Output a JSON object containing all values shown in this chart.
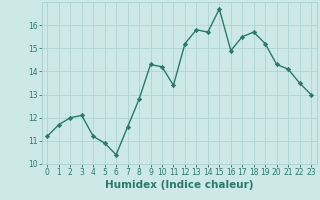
{
  "title": "",
  "xlabel": "Humidex (Indice chaleur)",
  "ylabel": "",
  "x_values": [
    0,
    1,
    2,
    3,
    4,
    5,
    6,
    7,
    8,
    9,
    10,
    11,
    12,
    13,
    14,
    15,
    16,
    17,
    18,
    19,
    20,
    21,
    22,
    23
  ],
  "y_values": [
    11.2,
    11.7,
    12.0,
    12.1,
    11.2,
    10.9,
    10.4,
    11.6,
    12.8,
    14.3,
    14.2,
    13.4,
    15.2,
    15.8,
    15.7,
    16.7,
    14.9,
    15.5,
    15.7,
    15.2,
    14.3,
    14.1,
    13.5,
    13.0
  ],
  "line_color": "#2a7a68",
  "marker": "D",
  "marker_size": 2.2,
  "line_width": 1.0,
  "background_color": "#cce9e5",
  "grid_color": "#b0d4d0",
  "ylim": [
    10,
    17
  ],
  "xlim": [
    -0.5,
    23.5
  ],
  "yticks": [
    10,
    11,
    12,
    13,
    14,
    15,
    16
  ],
  "xticks": [
    0,
    1,
    2,
    3,
    4,
    5,
    6,
    7,
    8,
    9,
    10,
    11,
    12,
    13,
    14,
    15,
    16,
    17,
    18,
    19,
    20,
    21,
    22,
    23
  ],
  "tick_fontsize": 5.5,
  "xlabel_fontsize": 7.5
}
